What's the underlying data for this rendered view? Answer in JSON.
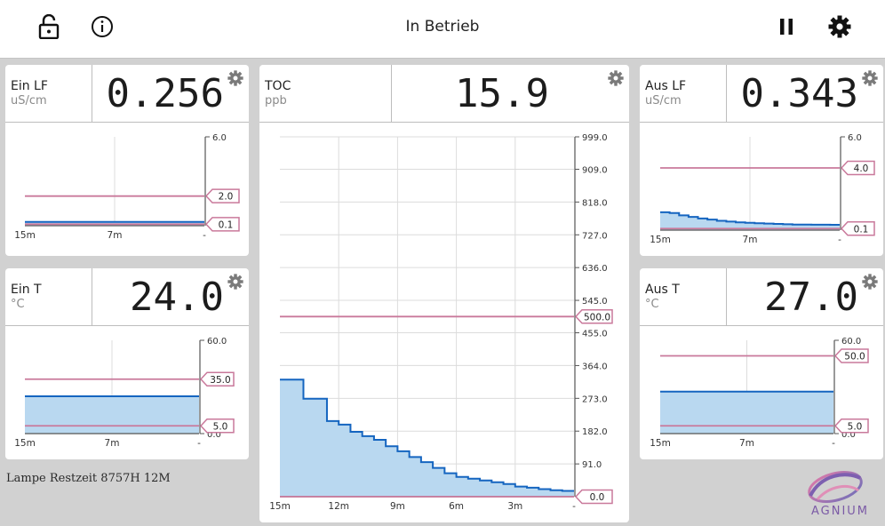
{
  "header": {
    "title": "In Betrieb",
    "icons": {
      "lock": "lock-open-icon",
      "info": "info-icon",
      "pause": "pause-icon",
      "settings": "gear-icon"
    }
  },
  "colors": {
    "line": "#1565c0",
    "fill": "#b9d8f0",
    "limit": "#c9799b",
    "grid": "#dcdcdc",
    "axis": "#555555"
  },
  "cards": {
    "ein_lf": {
      "label": "Ein LF",
      "unit": "uS/cm",
      "value": "0.256"
    },
    "ein_t": {
      "label": "Ein T",
      "unit": "°C",
      "value": "24.0"
    },
    "toc": {
      "label": "TOC",
      "unit": "ppb",
      "value": "15.9"
    },
    "aus_lf": {
      "label": "Aus LF",
      "unit": "uS/cm",
      "value": "0.343"
    },
    "aus_t": {
      "label": "Aus T",
      "unit": "°C",
      "value": "27.0"
    }
  },
  "footer": {
    "lamp": "Lampe Restzeit 8757H 12M"
  },
  "logo": {
    "text": "AGNIUM"
  },
  "chart_data": [
    {
      "id": "ein_lf",
      "type": "area",
      "title": "Ein LF",
      "x_ticks": [
        "15m",
        "7m",
        "-"
      ],
      "y_ticks": [
        "6.0"
      ],
      "ylim": [
        0,
        6.0
      ],
      "x_range_min": [
        15,
        0
      ],
      "values": [
        0.256,
        0.256
      ],
      "limits": [
        {
          "label": "2.0",
          "value": 2.0
        },
        {
          "label": "0.1",
          "value": 0.1
        }
      ]
    },
    {
      "id": "ein_t",
      "type": "area",
      "title": "Ein T",
      "x_ticks": [
        "15m",
        "7m",
        "-"
      ],
      "y_ticks": [
        "60.0",
        "0.0"
      ],
      "ylim": [
        0,
        60.0
      ],
      "x_range_min": [
        15,
        0
      ],
      "values": [
        24.0,
        24.0
      ],
      "limits": [
        {
          "label": "35.0",
          "value": 35.0
        },
        {
          "label": "5.0",
          "value": 5.0
        }
      ]
    },
    {
      "id": "toc",
      "type": "area",
      "title": "TOC",
      "x_ticks": [
        "15m",
        "12m",
        "9m",
        "6m",
        "3m",
        "-"
      ],
      "y_ticks": [
        "999.0",
        "909.0",
        "818.0",
        "727.0",
        "636.0",
        "545.0",
        "455.0",
        "364.0",
        "273.0",
        "182.0",
        "91.0"
      ],
      "ylim": [
        0,
        999.0
      ],
      "x_range_min": [
        15,
        0
      ],
      "step": true,
      "values": [
        325,
        325,
        272,
        272,
        210,
        200,
        180,
        168,
        158,
        140,
        126,
        110,
        96,
        80,
        65,
        55,
        50,
        45,
        40,
        35,
        28,
        25,
        21,
        18,
        15.9,
        15.9
      ],
      "limits": [
        {
          "label": "500.0",
          "value": 500.0
        },
        {
          "label": "0.0",
          "value": 0.0
        }
      ]
    },
    {
      "id": "aus_lf",
      "type": "area",
      "title": "Aus LF",
      "x_ticks": [
        "15m",
        "7m",
        "-"
      ],
      "y_ticks": [
        "6.0"
      ],
      "ylim": [
        0,
        6.0
      ],
      "x_range_min": [
        15,
        0
      ],
      "step": true,
      "values": [
        1.15,
        1.1,
        0.95,
        0.85,
        0.75,
        0.68,
        0.6,
        0.55,
        0.5,
        0.47,
        0.44,
        0.42,
        0.4,
        0.38,
        0.36,
        0.36,
        0.35,
        0.35,
        0.343,
        0.343
      ],
      "limits": [
        {
          "label": "4.0",
          "value": 4.0
        },
        {
          "label": "0.1",
          "value": 0.1
        }
      ]
    },
    {
      "id": "aus_t",
      "type": "area",
      "title": "Aus T",
      "x_ticks": [
        "15m",
        "7m",
        "-"
      ],
      "y_ticks": [
        "60.0",
        "0.0"
      ],
      "ylim": [
        0,
        60.0
      ],
      "x_range_min": [
        15,
        0
      ],
      "values": [
        27.0,
        27.0
      ],
      "limits": [
        {
          "label": "50.0",
          "value": 50.0
        },
        {
          "label": "5.0",
          "value": 5.0
        }
      ]
    }
  ]
}
